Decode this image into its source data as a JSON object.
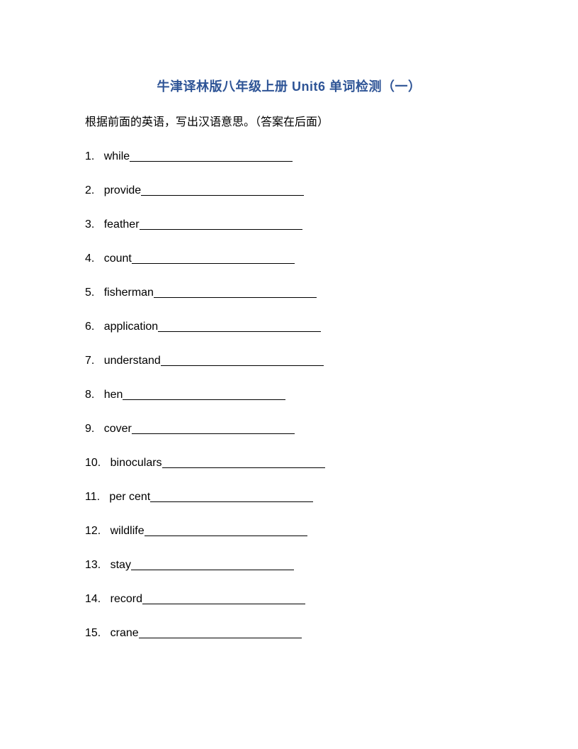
{
  "title": "牛津译林版八年级上册 Unit6 单词检测（一）",
  "instruction": "根据前面的英语，写出汉语意思。（答案在后面）",
  "title_color": "#2e5496",
  "title_fontsize": 18,
  "instruction_fontsize": 16,
  "item_fontsize": 16,
  "background_color": "#ffffff",
  "text_color": "#000000",
  "blank_line_width": 230,
  "items": [
    {
      "number": "1.",
      "word": "while"
    },
    {
      "number": "2.",
      "word": "provide"
    },
    {
      "number": "3.",
      "word": "feather"
    },
    {
      "number": "4.",
      "word": "count"
    },
    {
      "number": "5.",
      "word": "fisherman"
    },
    {
      "number": "6.",
      "word": "application"
    },
    {
      "number": "7.",
      "word": "understand"
    },
    {
      "number": "8.",
      "word": "hen"
    },
    {
      "number": "9.",
      "word": "cover"
    },
    {
      "number": "10.",
      "word": "binoculars"
    },
    {
      "number": "11.",
      "word": "per cent"
    },
    {
      "number": "12.",
      "word": "wildlife"
    },
    {
      "number": "13.",
      "word": "stay"
    },
    {
      "number": "14.",
      "word": "record"
    },
    {
      "number": "15.",
      "word": "crane"
    }
  ]
}
